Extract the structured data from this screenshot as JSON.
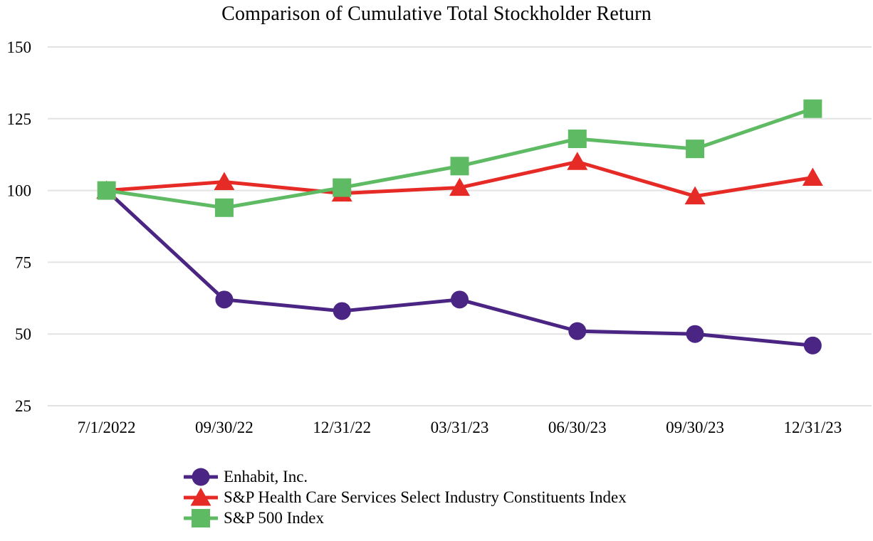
{
  "title": "Comparison of Cumulative Total Stockholder Return",
  "chart_data": {
    "type": "line",
    "title": "Comparison of Cumulative Total Stockholder Return",
    "categories": [
      "7/1/2022",
      "09/30/22",
      "12/31/22",
      "03/31/23",
      "06/30/23",
      "09/30/23",
      "12/31/23"
    ],
    "series": [
      {
        "name": "Enhabit, Inc.",
        "marker": "circle",
        "color": "#4A2583",
        "values": [
          100,
          62,
          58,
          62,
          51,
          50,
          46
        ]
      },
      {
        "name": "S&P Health Care Services Select Industry Constituents Index",
        "marker": "triangle",
        "color": "#E62B27",
        "values": [
          100,
          103,
          99,
          101,
          110,
          98,
          104.5
        ]
      },
      {
        "name": "S&P 500 Index",
        "marker": "square",
        "color": "#5FBA64",
        "values": [
          100,
          94,
          101,
          108.5,
          118,
          114.5,
          128.5
        ]
      }
    ],
    "xlabel": "",
    "ylabel": "",
    "ylim": [
      25,
      150
    ],
    "yticks": [
      25,
      50,
      75,
      100,
      125,
      150
    ],
    "grid": true,
    "gridline_color": "#E3E3E3",
    "background_color": "#FFFFFF",
    "legend_position": "bottom-left"
  }
}
